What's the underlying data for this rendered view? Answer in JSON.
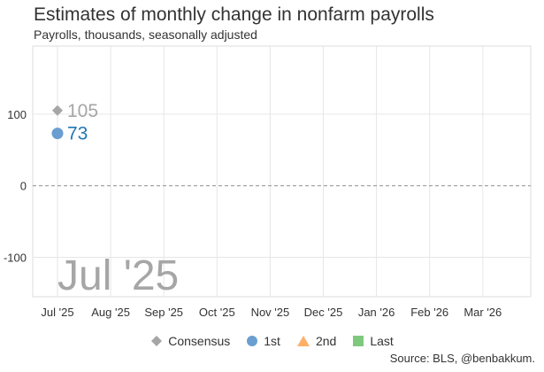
{
  "header": {
    "title": "Estimates of monthly change in nonfarm payrolls",
    "subtitle": "Payrolls, thousands, seasonally adjusted"
  },
  "source": "Source: BLS, @benbakkum.",
  "watermark_label": "Jul '25",
  "chart_data": {
    "type": "scatter",
    "x_categories": [
      "Jul '25",
      "Aug '25",
      "Sep '25",
      "Oct '25",
      "Nov '25",
      "Dec '25",
      "Jan '26",
      "Feb '26",
      "Mar '26"
    ],
    "y_ticks": [
      100,
      0,
      -100
    ],
    "ylim": [
      -155,
      195
    ],
    "zero_line": "dashed",
    "grid": true,
    "legend_position": "bottom",
    "series": [
      {
        "name": "Consensus",
        "marker": "diamond",
        "color": "#a6a6a6",
        "points": [
          {
            "x": "Jul '25",
            "y": 105,
            "label": "105"
          }
        ]
      },
      {
        "name": "1st",
        "marker": "circle",
        "color": "#6a9ed0",
        "label_color": "#1f77b4",
        "points": [
          {
            "x": "Jul '25",
            "y": 73,
            "label": "73"
          }
        ]
      },
      {
        "name": "2nd",
        "marker": "triangle",
        "color": "#ffb066",
        "points": []
      },
      {
        "name": "Last",
        "marker": "square",
        "color": "#7fc97f",
        "points": []
      }
    ]
  }
}
